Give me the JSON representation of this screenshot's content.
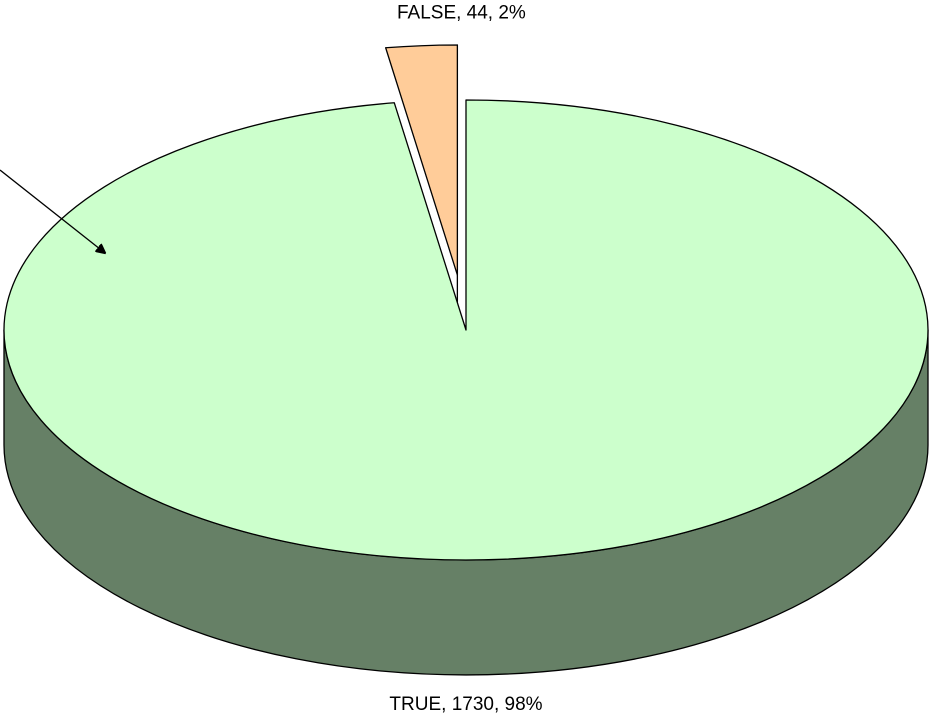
{
  "chart_data": {
    "type": "pie",
    "categories": [
      "TRUE",
      "FALSE"
    ],
    "values": [
      1730,
      44
    ],
    "value_labels": [
      "TRUE, 1730, 98%",
      "FALSE, 44, 2%"
    ],
    "colors": [
      "#ccffcc",
      "#ffcc99"
    ],
    "side_colors": [
      "#668066",
      "#806040"
    ]
  }
}
